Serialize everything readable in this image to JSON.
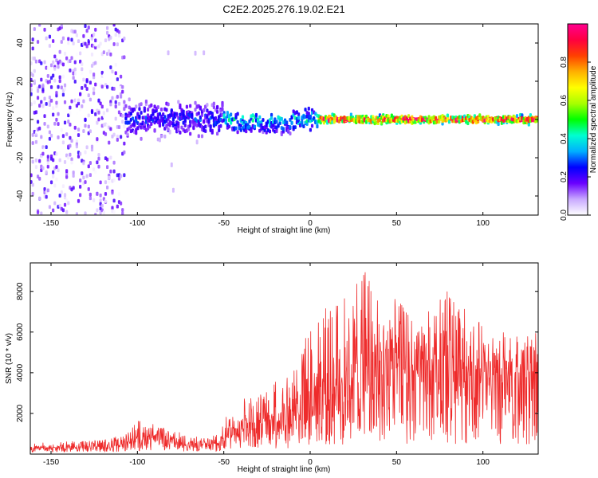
{
  "title": "C2E2.2025.276.19.02.E21",
  "chart_data": [
    {
      "type": "heatmap",
      "xlabel": "Height of straight line (km)",
      "ylabel": "Frequency (Hz)",
      "xlim": [
        -162,
        132
      ],
      "ylim": [
        -50,
        50
      ],
      "x_ticks": [
        -150,
        -100,
        -50,
        0,
        50,
        100
      ],
      "x_tick_labels": [
        "-150",
        "-100",
        "-50",
        "0",
        "50",
        "100"
      ],
      "y_ticks": [
        -40,
        -20,
        0,
        20,
        40
      ],
      "y_tick_labels": [
        "-40",
        "-20",
        "0",
        "20",
        "40"
      ],
      "colorbar": {
        "label": "Normalized spectral amplitude",
        "range": [
          0,
          1
        ],
        "ticks": [
          0.0,
          0.2,
          0.4,
          0.6,
          0.8
        ],
        "tick_labels": [
          "0.0",
          "0.2",
          "0.4",
          "0.6",
          "0.8"
        ],
        "stops": [
          "#ffffff",
          "#c8a8ff",
          "#6a00ff",
          "#0000ff",
          "#00b0ff",
          "#00ffd0",
          "#00ff00",
          "#a8ff00",
          "#ffff00",
          "#ffb000",
          "#ff4000",
          "#ff0040",
          "#ff0090"
        ]
      },
      "regions": [
        {
          "x_range": [
            -162,
            -107
          ],
          "freq_spread": 50,
          "amplitude": 0.12,
          "description": "noise"
        },
        {
          "x_range": [
            -107,
            -50
          ],
          "freq_spread": 12,
          "amplitude": 0.25
        },
        {
          "x_range": [
            -50,
            5
          ],
          "freq_spread": 8,
          "amplitude": 0.4
        },
        {
          "x_range": [
            5,
            132
          ],
          "freq_spread": 3,
          "amplitude": 0.9
        }
      ]
    },
    {
      "type": "line",
      "xlabel": "Height of straight line (km)",
      "ylabel": "SNR (10 * v/v)",
      "xlim": [
        -162,
        132
      ],
      "ylim": [
        0,
        9400
      ],
      "x_ticks": [
        -150,
        -100,
        -50,
        0,
        50,
        100
      ],
      "x_tick_labels": [
        "-150",
        "-100",
        "-50",
        "0",
        "50",
        "100"
      ],
      "y_ticks": [
        2000,
        4000,
        6000,
        8000
      ],
      "y_tick_labels": [
        "2000",
        "4000",
        "6000",
        "8000"
      ],
      "color": "#ee2b2b",
      "series": [
        {
          "name": "SNR",
          "x": [
            -162,
            -150,
            -120,
            -110,
            -100,
            -90,
            -80,
            -70,
            -60,
            -52,
            -48,
            -40,
            -30,
            -20,
            -10,
            0,
            10,
            20,
            30,
            40,
            50,
            60,
            70,
            80,
            90,
            100,
            110,
            120,
            132
          ],
          "y_mean": [
            300,
            320,
            350,
            450,
            800,
            900,
            600,
            500,
            450,
            550,
            1100,
            1500,
            1600,
            1800,
            2400,
            3000,
            3500,
            3800,
            4200,
            4300,
            4200,
            4100,
            4300,
            4500,
            4300,
            4000,
            3800,
            3900,
            4100
          ],
          "y_peak": [
            500,
            600,
            700,
            900,
            1700,
            1500,
            1200,
            900,
            800,
            1000,
            2100,
            2800,
            2900,
            3700,
            4500,
            6200,
            7500,
            7800,
            9400,
            7800,
            7600,
            6800,
            7100,
            8200,
            7200,
            6300,
            6000,
            6200,
            6500
          ]
        }
      ]
    }
  ]
}
